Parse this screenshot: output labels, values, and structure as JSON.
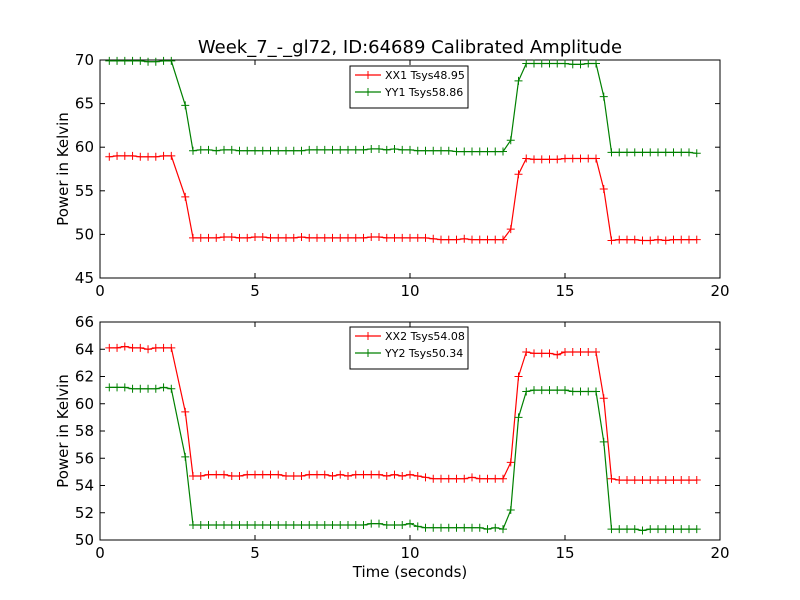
{
  "title": "Week_7_-_gl72, ID:64689 Calibrated Amplitude",
  "chart_data": [
    {
      "type": "line",
      "ylabel": "Power in Kelvin",
      "xlabel": "",
      "xlim": [
        0,
        20
      ],
      "ylim": [
        45,
        70
      ],
      "xticks": [
        0,
        5,
        10,
        15,
        20
      ],
      "yticks": [
        45,
        50,
        55,
        60,
        65,
        70
      ],
      "grid": false,
      "legend_position": "top-center",
      "series": [
        {
          "name": "XX1 Tsys48.95",
          "color": "#ff0000",
          "x": [
            0.3,
            0.55,
            0.8,
            1.05,
            1.3,
            1.55,
            1.8,
            2.05,
            2.3,
            2.75,
            3.0,
            3.25,
            3.5,
            3.75,
            4.0,
            4.25,
            4.5,
            4.75,
            5.0,
            5.25,
            5.5,
            5.75,
            6.0,
            6.25,
            6.5,
            6.75,
            7.0,
            7.25,
            7.5,
            7.75,
            8.0,
            8.25,
            8.5,
            8.75,
            9.0,
            9.25,
            9.5,
            9.75,
            10.0,
            10.25,
            10.5,
            10.75,
            11.0,
            11.25,
            11.5,
            11.75,
            12.0,
            12.25,
            12.5,
            12.75,
            13.0,
            13.25,
            13.5,
            13.75,
            14.0,
            14.25,
            14.5,
            14.75,
            15.0,
            15.25,
            15.5,
            15.75,
            16.0,
            16.25,
            16.5,
            16.75,
            17.0,
            17.25,
            17.5,
            17.75,
            18.0,
            18.25,
            18.5,
            18.75,
            19.0,
            19.25
          ],
          "values": [
            58.9,
            59.0,
            59.0,
            59.0,
            58.9,
            58.9,
            58.9,
            59.0,
            59.0,
            54.3,
            49.6,
            49.6,
            49.6,
            49.6,
            49.7,
            49.7,
            49.6,
            49.6,
            49.7,
            49.7,
            49.6,
            49.6,
            49.6,
            49.6,
            49.7,
            49.6,
            49.6,
            49.6,
            49.6,
            49.6,
            49.6,
            49.6,
            49.6,
            49.7,
            49.7,
            49.6,
            49.6,
            49.6,
            49.6,
            49.6,
            49.6,
            49.5,
            49.4,
            49.4,
            49.4,
            49.5,
            49.4,
            49.4,
            49.4,
            49.4,
            49.4,
            50.6,
            56.9,
            58.7,
            58.6,
            58.6,
            58.6,
            58.6,
            58.7,
            58.7,
            58.7,
            58.7,
            58.7,
            55.2,
            49.3,
            49.4,
            49.4,
            49.4,
            49.3,
            49.3,
            49.4,
            49.3,
            49.4,
            49.4,
            49.4,
            49.4
          ]
        },
        {
          "name": "YY1 Tsys58.86",
          "color": "#008000",
          "x": [
            0.3,
            0.55,
            0.8,
            1.05,
            1.3,
            1.55,
            1.8,
            2.05,
            2.3,
            2.75,
            3.0,
            3.25,
            3.5,
            3.75,
            4.0,
            4.25,
            4.5,
            4.75,
            5.0,
            5.25,
            5.5,
            5.75,
            6.0,
            6.25,
            6.5,
            6.75,
            7.0,
            7.25,
            7.5,
            7.75,
            8.0,
            8.25,
            8.5,
            8.75,
            9.0,
            9.25,
            9.5,
            9.75,
            10.0,
            10.25,
            10.5,
            10.75,
            11.0,
            11.25,
            11.5,
            11.75,
            12.0,
            12.25,
            12.5,
            12.75,
            13.0,
            13.25,
            13.5,
            13.75,
            14.0,
            14.25,
            14.5,
            14.75,
            15.0,
            15.25,
            15.5,
            15.75,
            16.0,
            16.25,
            16.5,
            16.75,
            17.0,
            17.25,
            17.5,
            17.75,
            18.0,
            18.25,
            18.5,
            18.75,
            19.0,
            19.25
          ],
          "values": [
            69.9,
            69.9,
            69.9,
            69.9,
            69.9,
            69.8,
            69.8,
            69.9,
            69.9,
            64.8,
            59.6,
            59.7,
            59.7,
            59.6,
            59.7,
            59.7,
            59.6,
            59.6,
            59.6,
            59.6,
            59.6,
            59.6,
            59.6,
            59.6,
            59.6,
            59.7,
            59.7,
            59.7,
            59.7,
            59.7,
            59.7,
            59.7,
            59.7,
            59.8,
            59.8,
            59.7,
            59.8,
            59.7,
            59.7,
            59.6,
            59.6,
            59.6,
            59.6,
            59.6,
            59.5,
            59.5,
            59.5,
            59.5,
            59.5,
            59.5,
            59.5,
            60.8,
            67.6,
            69.6,
            69.6,
            69.6,
            69.6,
            69.6,
            69.6,
            69.5,
            69.5,
            69.6,
            69.6,
            65.8,
            59.4,
            59.4,
            59.4,
            59.4,
            59.4,
            59.4,
            59.4,
            59.4,
            59.4,
            59.4,
            59.4,
            59.3
          ]
        }
      ]
    },
    {
      "type": "line",
      "ylabel": "Power in Kelvin",
      "xlabel": "Time (seconds)",
      "xlim": [
        0,
        20
      ],
      "ylim": [
        50,
        66
      ],
      "xticks": [
        0,
        5,
        10,
        15,
        20
      ],
      "yticks": [
        50,
        52,
        54,
        56,
        58,
        60,
        62,
        64,
        66
      ],
      "grid": false,
      "legend_position": "top-center",
      "series": [
        {
          "name": "XX2 Tsys54.08",
          "color": "#ff0000",
          "x": [
            0.3,
            0.55,
            0.8,
            1.05,
            1.3,
            1.55,
            1.8,
            2.05,
            2.3,
            2.75,
            3.0,
            3.25,
            3.5,
            3.75,
            4.0,
            4.25,
            4.5,
            4.75,
            5.0,
            5.25,
            5.5,
            5.75,
            6.0,
            6.25,
            6.5,
            6.75,
            7.0,
            7.25,
            7.5,
            7.75,
            8.0,
            8.25,
            8.5,
            8.75,
            9.0,
            9.25,
            9.5,
            9.75,
            10.0,
            10.25,
            10.5,
            10.75,
            11.0,
            11.25,
            11.5,
            11.75,
            12.0,
            12.25,
            12.5,
            12.75,
            13.0,
            13.25,
            13.5,
            13.75,
            14.0,
            14.25,
            14.5,
            14.75,
            15.0,
            15.25,
            15.5,
            15.75,
            16.0,
            16.25,
            16.5,
            16.75,
            17.0,
            17.25,
            17.5,
            17.75,
            18.0,
            18.25,
            18.5,
            18.75,
            19.0,
            19.25
          ],
          "values": [
            64.1,
            64.1,
            64.2,
            64.1,
            64.1,
            64.0,
            64.1,
            64.1,
            64.1,
            59.4,
            54.7,
            54.7,
            54.8,
            54.8,
            54.8,
            54.7,
            54.7,
            54.8,
            54.8,
            54.8,
            54.8,
            54.8,
            54.7,
            54.7,
            54.7,
            54.8,
            54.8,
            54.8,
            54.7,
            54.8,
            54.7,
            54.8,
            54.8,
            54.8,
            54.8,
            54.7,
            54.8,
            54.7,
            54.8,
            54.7,
            54.6,
            54.5,
            54.5,
            54.5,
            54.5,
            54.5,
            54.6,
            54.5,
            54.5,
            54.5,
            54.5,
            55.7,
            62.0,
            63.8,
            63.7,
            63.7,
            63.7,
            63.6,
            63.8,
            63.8,
            63.8,
            63.8,
            63.8,
            60.4,
            54.5,
            54.4,
            54.4,
            54.4,
            54.4,
            54.4,
            54.4,
            54.4,
            54.4,
            54.4,
            54.4,
            54.4
          ]
        },
        {
          "name": "YY2 Tsys50.34",
          "color": "#008000",
          "x": [
            0.3,
            0.55,
            0.8,
            1.05,
            1.3,
            1.55,
            1.8,
            2.05,
            2.3,
            2.75,
            3.0,
            3.25,
            3.5,
            3.75,
            4.0,
            4.25,
            4.5,
            4.75,
            5.0,
            5.25,
            5.5,
            5.75,
            6.0,
            6.25,
            6.5,
            6.75,
            7.0,
            7.25,
            7.5,
            7.75,
            8.0,
            8.25,
            8.5,
            8.75,
            9.0,
            9.25,
            9.5,
            9.75,
            10.0,
            10.25,
            10.5,
            10.75,
            11.0,
            11.25,
            11.5,
            11.75,
            12.0,
            12.25,
            12.5,
            12.75,
            13.0,
            13.25,
            13.5,
            13.75,
            14.0,
            14.25,
            14.5,
            14.75,
            15.0,
            15.25,
            15.5,
            15.75,
            16.0,
            16.25,
            16.5,
            16.75,
            17.0,
            17.25,
            17.5,
            17.75,
            18.0,
            18.25,
            18.5,
            18.75,
            19.0,
            19.25
          ],
          "values": [
            61.2,
            61.2,
            61.2,
            61.1,
            61.1,
            61.1,
            61.1,
            61.2,
            61.1,
            56.1,
            51.1,
            51.1,
            51.1,
            51.1,
            51.1,
            51.1,
            51.1,
            51.1,
            51.1,
            51.1,
            51.1,
            51.1,
            51.1,
            51.1,
            51.1,
            51.1,
            51.1,
            51.1,
            51.1,
            51.1,
            51.1,
            51.1,
            51.1,
            51.2,
            51.2,
            51.1,
            51.1,
            51.1,
            51.2,
            51.0,
            50.9,
            50.9,
            50.9,
            50.9,
            50.9,
            50.9,
            50.9,
            50.9,
            50.8,
            50.9,
            50.8,
            52.2,
            59.0,
            60.9,
            61.0,
            61.0,
            61.0,
            61.0,
            61.0,
            60.9,
            60.9,
            60.9,
            60.9,
            57.2,
            50.8,
            50.8,
            50.8,
            50.8,
            50.7,
            50.8,
            50.8,
            50.8,
            50.8,
            50.8,
            50.8,
            50.8
          ]
        }
      ]
    }
  ]
}
